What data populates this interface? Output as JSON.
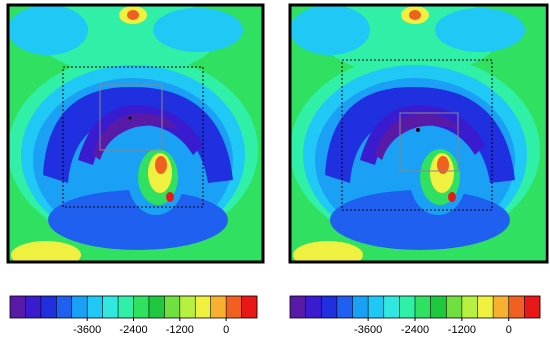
{
  "chart_data": [
    {
      "type": "heatmap",
      "colors": [
        "#5a1aa8",
        "#3b1bd0",
        "#2030e0",
        "#2060f0",
        "#1aa0f5",
        "#20c8f5",
        "#30e8e0",
        "#30f0a8",
        "#30e060",
        "#20c840",
        "#70e040",
        "#b8f040",
        "#f0f040",
        "#f8b030",
        "#f06020",
        "#e81818"
      ],
      "zlim": [
        -5600,
        800
      ],
      "zticks": [
        -3600,
        -2400,
        -1200,
        0
      ]
    },
    {
      "type": "heatmap",
      "colors": [
        "#5a1aa8",
        "#3b1bd0",
        "#2030e0",
        "#2060f0",
        "#1aa0f5",
        "#20c8f5",
        "#30e8e0",
        "#30f0a8",
        "#30e060",
        "#20c840",
        "#70e040",
        "#b8f040",
        "#f0f040",
        "#f8b030",
        "#f06020",
        "#e81818"
      ],
      "zlim": [
        -5600,
        800
      ],
      "zticks": [
        -3600,
        -2400,
        -1200,
        0
      ]
    }
  ]
}
